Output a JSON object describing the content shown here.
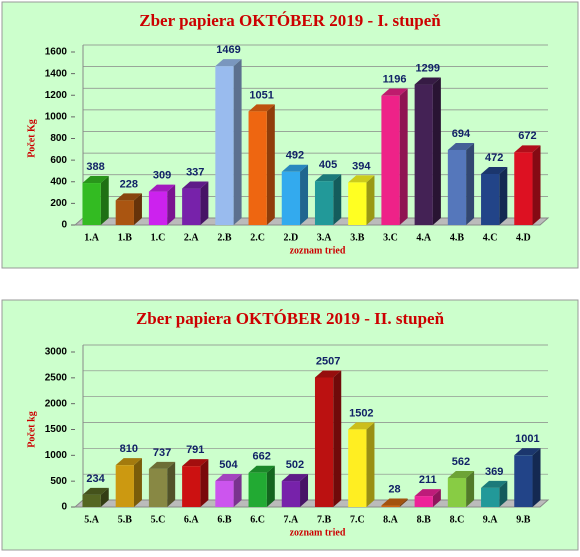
{
  "chart_data": [
    {
      "type": "bar",
      "title": "Zber papiera OKTÓBER 2019 - I. stupeň",
      "y_label": "Počet Kg",
      "x_label": "zoznam tried",
      "categories": [
        "1.A",
        "1.B",
        "1.C",
        "2.A",
        "2.B",
        "2.C",
        "2.D",
        "3.A",
        "3.B",
        "3.C",
        "4.A",
        "4.B",
        "4.C",
        "4.D"
      ],
      "values": [
        388,
        228,
        309,
        337,
        1469,
        1051,
        492,
        405,
        394,
        1196,
        1299,
        694,
        472,
        672
      ],
      "colors": [
        "#33bb22",
        "#aa5511",
        "#cc22ee",
        "#7722aa",
        "#99bbee",
        "#ee6611",
        "#33aaee",
        "#229999",
        "#ffff22",
        "#ee2288",
        "#442255",
        "#5577bb",
        "#224488",
        "#dd1122"
      ],
      "ylim": [
        0,
        1600
      ],
      "yticks": [
        0,
        200,
        400,
        600,
        800,
        1000,
        1200,
        1400,
        1600
      ],
      "grid": true
    },
    {
      "type": "bar",
      "title": "Zber papiera OKTÓBER 2019  - II. stupeň",
      "y_label": "Počet kg",
      "x_label": "zoznam tried",
      "categories": [
        "5.A",
        "5.B",
        "5.C",
        "6.A",
        "6.B",
        "6.C",
        "7.A",
        "7.B",
        "7.C",
        "8.A",
        "8.B",
        "8.C",
        "9.A",
        "9.B"
      ],
      "values": [
        234,
        810,
        737,
        791,
        504,
        662,
        502,
        2507,
        1502,
        28,
        211,
        562,
        369,
        1001
      ],
      "colors": [
        "#556622",
        "#cc9911",
        "#888844",
        "#cc1111",
        "#cc55ee",
        "#22aa33",
        "#7722aa",
        "#bb1111",
        "#ffee22",
        "#cc6611",
        "#ee2299",
        "#88cc44",
        "#229999",
        "#224488"
      ],
      "ylim": [
        0,
        3000
      ],
      "yticks": [
        0,
        500,
        1000,
        1500,
        2000,
        2500,
        3000
      ],
      "grid": true
    }
  ]
}
